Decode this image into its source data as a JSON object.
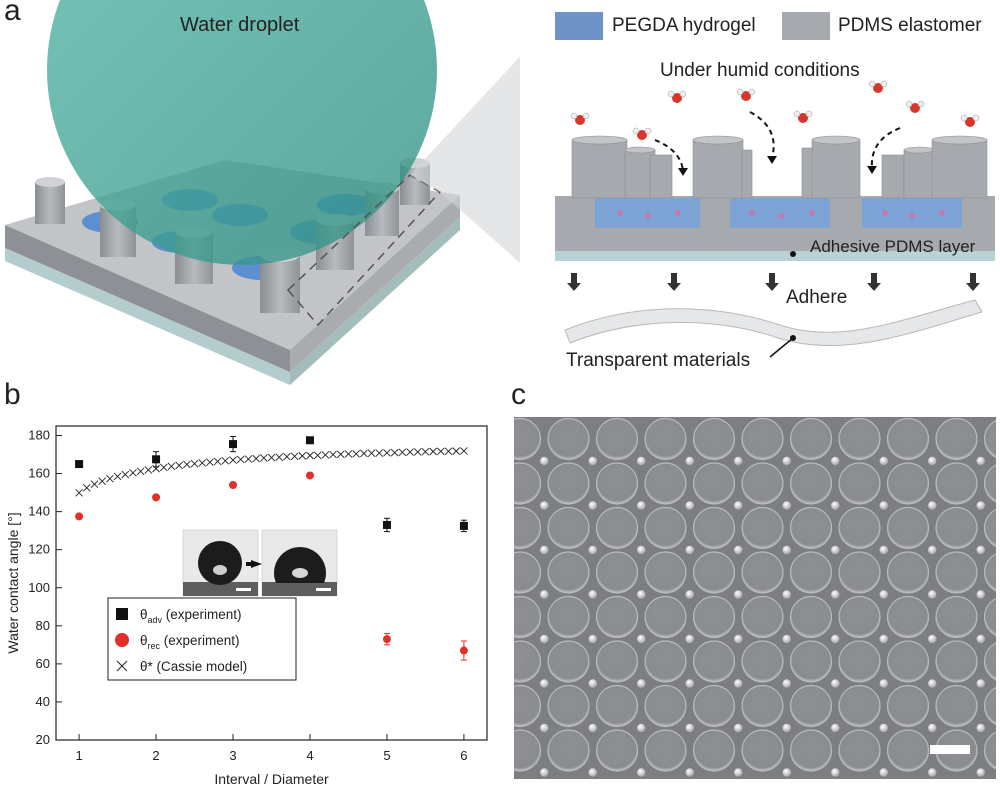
{
  "panels": {
    "a": {
      "letter": "a",
      "droplet_label": "Water droplet",
      "legend": [
        {
          "label": "PEGDA hydrogel",
          "color": "#6f93c6"
        },
        {
          "label": "PDMS elastomer",
          "color": "#a6a9ad"
        }
      ],
      "humid_label": "Under humid conditions",
      "adhesive_label": "Adhesive PDMS layer",
      "adhere_label": "Adhere",
      "transparent_label": "Transparent materials"
    },
    "b": {
      "letter": "b"
    },
    "c": {
      "letter": "c"
    }
  },
  "chart_data": {
    "type": "scatter",
    "xlabel": "Interval / Diameter",
    "ylabel": "Water contact angle [°]",
    "xlim": [
      0.7,
      6.3
    ],
    "ylim": [
      20,
      185
    ],
    "xticks": [
      1,
      2,
      3,
      4,
      5,
      6
    ],
    "yticks": [
      20,
      40,
      60,
      80,
      100,
      120,
      140,
      160,
      180
    ],
    "grid": false,
    "legend_position": "lower-left",
    "series": [
      {
        "name": "θadv (experiment)",
        "legend_main": "θ",
        "legend_sub": "adv",
        "legend_rest": " (experiment)",
        "marker": "square",
        "color": "#111111",
        "x": [
          1,
          2,
          3,
          4,
          5,
          6
        ],
        "y": [
          165,
          167.5,
          175.5,
          177.5,
          133,
          132.5
        ],
        "err": [
          1.5,
          4,
          4,
          1,
          3.5,
          3
        ]
      },
      {
        "name": "θrec (experiment)",
        "legend_main": "θ",
        "legend_sub": "rec",
        "legend_rest": " (experiment)",
        "marker": "circle",
        "color": "#e0302a",
        "x": [
          1,
          2,
          3,
          4,
          5,
          6
        ],
        "y": [
          137.5,
          147.5,
          154,
          159,
          73,
          67
        ],
        "err": [
          0,
          0,
          0,
          0,
          3,
          5
        ]
      },
      {
        "name": "θ* (Cassie model)",
        "legend_main": "θ* (Cassie model)",
        "legend_sub": "",
        "legend_rest": "",
        "marker": "x",
        "color": "#222222",
        "x": [
          1,
          1.1,
          1.2,
          1.3,
          1.4,
          1.5,
          1.6,
          1.7,
          1.8,
          1.9,
          2,
          2.1,
          2.2,
          2.3,
          2.4,
          2.5,
          2.6,
          2.7,
          2.8,
          2.9,
          3,
          3.1,
          3.2,
          3.3,
          3.4,
          3.5,
          3.6,
          3.7,
          3.8,
          3.9,
          4,
          4.1,
          4.2,
          4.3,
          4.4,
          4.5,
          4.6,
          4.7,
          4.8,
          4.9,
          5,
          5.1,
          5.2,
          5.3,
          5.4,
          5.5,
          5.6,
          5.7,
          5.8,
          5.9,
          6
        ],
        "y": [
          149.9,
          152.5,
          154.4,
          156,
          157.3,
          158.5,
          159.5,
          160.4,
          161.2,
          161.9,
          162.6,
          163.2,
          163.8,
          164.3,
          164.8,
          165.2,
          165.6,
          166,
          166.4,
          166.7,
          167.1,
          167.4,
          167.6,
          167.9,
          168.2,
          168.4,
          168.6,
          168.9,
          169.1,
          169.3,
          169.5,
          169.6,
          169.8,
          170,
          170.1,
          170.3,
          170.4,
          170.6,
          170.7,
          170.8,
          170.9,
          171,
          171.2,
          171.3,
          171.4,
          171.5,
          171.6,
          171.7,
          171.7,
          171.8,
          171.9
        ]
      }
    ]
  }
}
